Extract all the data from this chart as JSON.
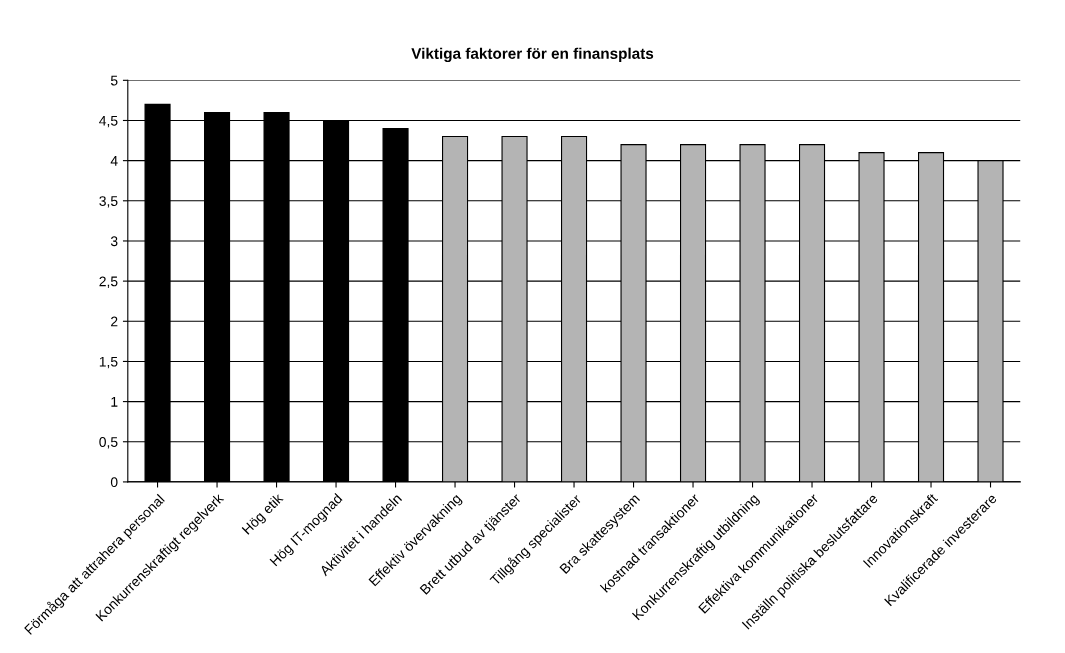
{
  "chart_data": {
    "type": "bar",
    "title": "Viktiga faktorer för en finansplats",
    "categories": [
      "Förmåga att attrahera personal",
      "Konkurrenskraftigt regelverk",
      "Hög etik",
      "Hög IT-mognad",
      "Aktivitet i handeln",
      "Effektiv övervakning",
      "Brett utbud av tjänster",
      "Tillgång specialister",
      "Bra skattesystem",
      "kostnad transaktioner",
      "Konkurrenskraftig utbildning",
      "Effektiva kommunikationer",
      "Inställn politiska beslutsfattare",
      "Innovationskraft",
      "Kvalificerade investerare"
    ],
    "values": [
      4.7,
      4.6,
      4.6,
      4.5,
      4.4,
      4.3,
      4.3,
      4.3,
      4.2,
      4.2,
      4.2,
      4.2,
      4.1,
      4.1,
      4.0
    ],
    "colors": [
      "#000000",
      "#000000",
      "#000000",
      "#000000",
      "#000000",
      "#b4b4b4",
      "#b4b4b4",
      "#b4b4b4",
      "#b4b4b4",
      "#b4b4b4",
      "#b4b4b4",
      "#b4b4b4",
      "#b4b4b4",
      "#b4b4b4",
      "#b4b4b4"
    ],
    "ylim": [
      0,
      5
    ],
    "yticks": [
      0,
      {
        "value": 0.5,
        "label": "0,5"
      },
      1,
      {
        "value": 1.5,
        "label": "1,5"
      },
      2,
      {
        "value": 2.5,
        "label": "2,5"
      },
      3,
      {
        "value": 3.5,
        "label": "3,5"
      },
      4,
      {
        "value": 4.5,
        "label": "4,5"
      },
      5
    ],
    "grid": "y",
    "legend": false
  }
}
